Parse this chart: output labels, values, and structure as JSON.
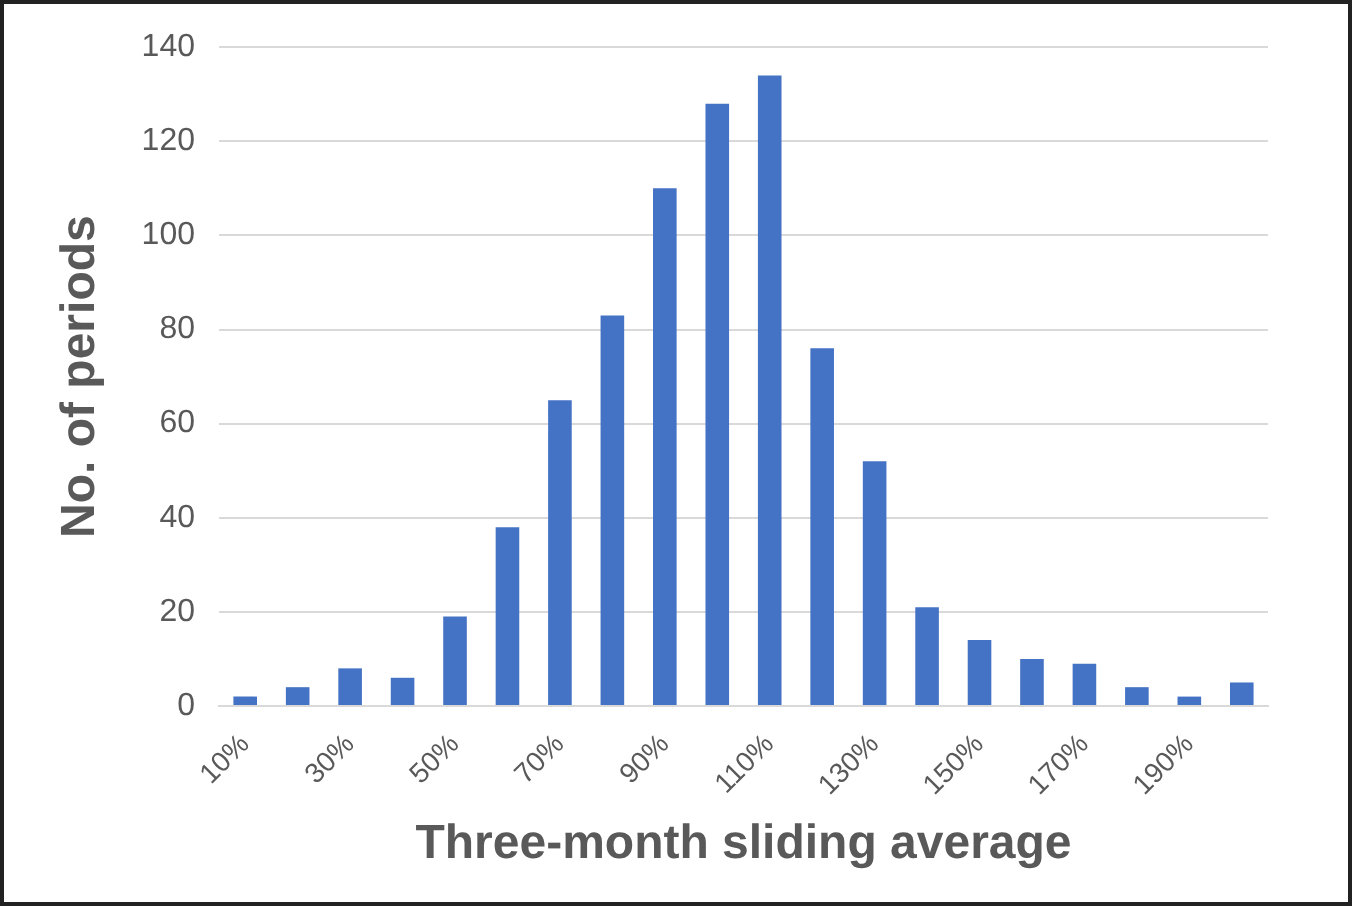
{
  "chart_data": {
    "type": "bar",
    "xlabel": "Three-month sliding average",
    "ylabel": "No. of periods",
    "categories": [
      "10%",
      null,
      "30%",
      null,
      "50%",
      null,
      "70%",
      null,
      "90%",
      null,
      "110%",
      null,
      "130%",
      null,
      "150%",
      null,
      "170%",
      null,
      "190%",
      null
    ],
    "values": [
      2,
      4,
      8,
      6,
      19,
      38,
      65,
      83,
      110,
      128,
      134,
      76,
      52,
      21,
      14,
      10,
      9,
      4,
      2,
      5
    ],
    "color": "#4472c4",
    "ylim": [
      0,
      140
    ],
    "yticks": [
      0,
      20,
      40,
      60,
      80,
      100,
      120,
      140
    ],
    "grid": "y",
    "legend": false
  }
}
